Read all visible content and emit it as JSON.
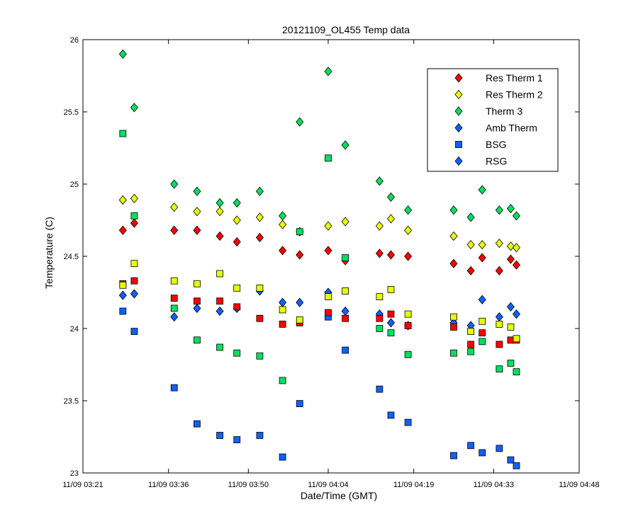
{
  "chart_data": {
    "type": "scatter",
    "title": "20121109_OL455 Temp data",
    "xlabel": "Date/Time (GMT)",
    "ylabel": "Temperature (C)",
    "xlim": [
      "11/09 03:21",
      "11/09 04:48"
    ],
    "ylim": [
      23,
      26
    ],
    "x_ticks": [
      "11/09 03:21",
      "11/09 03:36",
      "11/09 03:50",
      "11/09 04:04",
      "11/09 04:19",
      "11/09 04:33",
      "11/09 04:48"
    ],
    "y_ticks": [
      "23",
      "23.5",
      "24",
      "24.5",
      "25",
      "25.5",
      "26"
    ],
    "grid": false,
    "legend_position": "top-right",
    "series": [
      {
        "name": "Res Therm 1",
        "marker": "diamond",
        "color": "#ff0000",
        "points": [
          [
            "03:28",
            24.68
          ],
          [
            "03:30",
            24.73
          ],
          [
            "03:37",
            24.68
          ],
          [
            "03:41",
            24.68
          ],
          [
            "03:45",
            24.64
          ],
          [
            "03:48",
            24.6
          ],
          [
            "03:52",
            24.63
          ],
          [
            "03:56",
            24.54
          ],
          [
            "03:59",
            24.51
          ],
          [
            "04:04",
            24.54
          ],
          [
            "04:07",
            24.47
          ],
          [
            "04:13",
            24.52
          ],
          [
            "04:15",
            24.51
          ],
          [
            "04:18",
            24.5
          ],
          [
            "04:26",
            24.45
          ],
          [
            "04:29",
            24.4
          ],
          [
            "04:31",
            24.49
          ],
          [
            "04:34",
            24.4
          ],
          [
            "04:36",
            24.48
          ],
          [
            "04:37",
            24.44
          ]
        ]
      },
      {
        "name": "Res Therm 2",
        "marker": "diamond",
        "color": "#e6ff00",
        "points": [
          [
            "03:28",
            24.89
          ],
          [
            "03:30",
            24.9
          ],
          [
            "03:37",
            24.84
          ],
          [
            "03:41",
            24.81
          ],
          [
            "03:45",
            24.81
          ],
          [
            "03:48",
            24.75
          ],
          [
            "03:52",
            24.77
          ],
          [
            "03:56",
            24.72
          ],
          [
            "03:59",
            24.67
          ],
          [
            "04:04",
            24.71
          ],
          [
            "04:07",
            24.74
          ],
          [
            "04:13",
            24.71
          ],
          [
            "04:15",
            24.76
          ],
          [
            "04:18",
            24.68
          ],
          [
            "04:26",
            24.64
          ],
          [
            "04:29",
            24.58
          ],
          [
            "04:31",
            24.58
          ],
          [
            "04:34",
            24.59
          ],
          [
            "04:36",
            24.57
          ],
          [
            "04:37",
            24.56
          ]
        ]
      },
      {
        "name": "Therm 3",
        "marker": "diamond",
        "color": "#00e060",
        "points": [
          [
            "03:28",
            25.9
          ],
          [
            "03:30",
            25.53
          ],
          [
            "03:37",
            25.0
          ],
          [
            "03:41",
            24.95
          ],
          [
            "03:45",
            24.87
          ],
          [
            "03:48",
            24.87
          ],
          [
            "03:52",
            24.95
          ],
          [
            "03:56",
            24.78
          ],
          [
            "03:59",
            25.43
          ],
          [
            "04:04",
            25.78
          ],
          [
            "04:07",
            25.27
          ],
          [
            "04:13",
            25.02
          ],
          [
            "04:15",
            24.91
          ],
          [
            "04:18",
            24.82
          ],
          [
            "04:26",
            24.82
          ],
          [
            "04:29",
            24.77
          ],
          [
            "04:31",
            24.96
          ],
          [
            "04:34",
            24.82
          ],
          [
            "04:36",
            24.83
          ],
          [
            "04:37",
            24.78
          ]
        ]
      },
      {
        "name": "Amb Therm",
        "marker": "diamond",
        "color": "#1060ff",
        "points": [
          [
            "03:28",
            24.23
          ],
          [
            "03:30",
            24.24
          ],
          [
            "03:37",
            24.08
          ],
          [
            "03:41",
            24.14
          ],
          [
            "03:45",
            24.12
          ],
          [
            "03:48",
            24.14
          ],
          [
            "03:52",
            24.26
          ],
          [
            "03:56",
            24.18
          ],
          [
            "03:59",
            24.18
          ],
          [
            "04:04",
            24.25
          ],
          [
            "04:07",
            24.12
          ],
          [
            "04:13",
            24.1
          ],
          [
            "04:15",
            24.04
          ],
          [
            "04:18",
            24.02
          ],
          [
            "04:26",
            24.04
          ],
          [
            "04:29",
            24.02
          ],
          [
            "04:31",
            24.2
          ],
          [
            "04:34",
            24.08
          ],
          [
            "04:36",
            24.15
          ],
          [
            "04:37",
            24.1
          ]
        ]
      },
      {
        "name": "BSG",
        "marker": "square",
        "color": "#1060ff",
        "points": [
          [
            "03:28",
            24.12
          ],
          [
            "03:30",
            23.98
          ],
          [
            "03:37",
            23.59
          ],
          [
            "03:41",
            23.34
          ],
          [
            "03:45",
            23.26
          ],
          [
            "03:48",
            23.23
          ],
          [
            "03:52",
            23.26
          ],
          [
            "03:56",
            23.11
          ],
          [
            "03:59",
            23.48
          ],
          [
            "04:04",
            24.08
          ],
          [
            "04:07",
            23.85
          ],
          [
            "04:13",
            23.58
          ],
          [
            "04:15",
            23.4
          ],
          [
            "04:18",
            23.35
          ],
          [
            "04:26",
            23.12
          ],
          [
            "04:29",
            23.19
          ],
          [
            "04:31",
            23.14
          ],
          [
            "04:34",
            23.17
          ],
          [
            "04:36",
            23.09
          ],
          [
            "04:37",
            23.05
          ]
        ]
      },
      {
        "name": "RSG",
        "marker": "diamond",
        "color": "#1060ff",
        "points": []
      },
      {
        "name": "",
        "marker": "square",
        "color": "#ff0000",
        "points": [
          [
            "03:28",
            24.31
          ],
          [
            "03:30",
            24.33
          ],
          [
            "03:37",
            24.21
          ],
          [
            "03:41",
            24.19
          ],
          [
            "03:45",
            24.19
          ],
          [
            "03:48",
            24.15
          ],
          [
            "03:52",
            24.07
          ],
          [
            "03:56",
            24.03
          ],
          [
            "03:59",
            24.04
          ],
          [
            "04:04",
            24.11
          ],
          [
            "04:07",
            24.07
          ],
          [
            "04:13",
            24.07
          ],
          [
            "04:15",
            24.1
          ],
          [
            "04:18",
            24.02
          ],
          [
            "04:26",
            24.01
          ],
          [
            "04:29",
            23.89
          ],
          [
            "04:31",
            23.97
          ],
          [
            "04:34",
            23.89
          ],
          [
            "04:36",
            23.92
          ],
          [
            "04:37",
            23.92
          ]
        ]
      },
      {
        "name": "",
        "marker": "square",
        "color": "#e6ff00",
        "points": [
          [
            "03:28",
            24.3
          ],
          [
            "03:30",
            24.45
          ],
          [
            "03:37",
            24.33
          ],
          [
            "03:41",
            24.31
          ],
          [
            "03:45",
            24.38
          ],
          [
            "03:48",
            24.28
          ],
          [
            "03:52",
            24.28
          ],
          [
            "03:56",
            24.13
          ],
          [
            "03:59",
            24.06
          ],
          [
            "04:04",
            24.22
          ],
          [
            "04:07",
            24.26
          ],
          [
            "04:13",
            24.22
          ],
          [
            "04:15",
            24.27
          ],
          [
            "04:18",
            24.1
          ],
          [
            "04:26",
            24.08
          ],
          [
            "04:29",
            23.98
          ],
          [
            "04:31",
            24.05
          ],
          [
            "04:34",
            24.03
          ],
          [
            "04:36",
            24.01
          ],
          [
            "04:37",
            23.93
          ]
        ]
      },
      {
        "name": "",
        "marker": "square",
        "color": "#00e060",
        "points": [
          [
            "03:28",
            25.35
          ],
          [
            "03:30",
            24.78
          ],
          [
            "03:37",
            24.14
          ],
          [
            "03:41",
            23.92
          ],
          [
            "03:45",
            23.87
          ],
          [
            "03:48",
            23.83
          ],
          [
            "03:52",
            23.81
          ],
          [
            "03:56",
            23.64
          ],
          [
            "03:59",
            24.67
          ],
          [
            "04:04",
            25.18
          ],
          [
            "04:07",
            24.49
          ],
          [
            "04:13",
            24.0
          ],
          [
            "04:15",
            23.97
          ],
          [
            "04:18",
            23.82
          ],
          [
            "04:26",
            23.83
          ],
          [
            "04:29",
            23.84
          ],
          [
            "04:31",
            23.91
          ],
          [
            "04:34",
            23.72
          ],
          [
            "04:36",
            23.76
          ],
          [
            "04:37",
            23.7
          ]
        ]
      }
    ]
  }
}
